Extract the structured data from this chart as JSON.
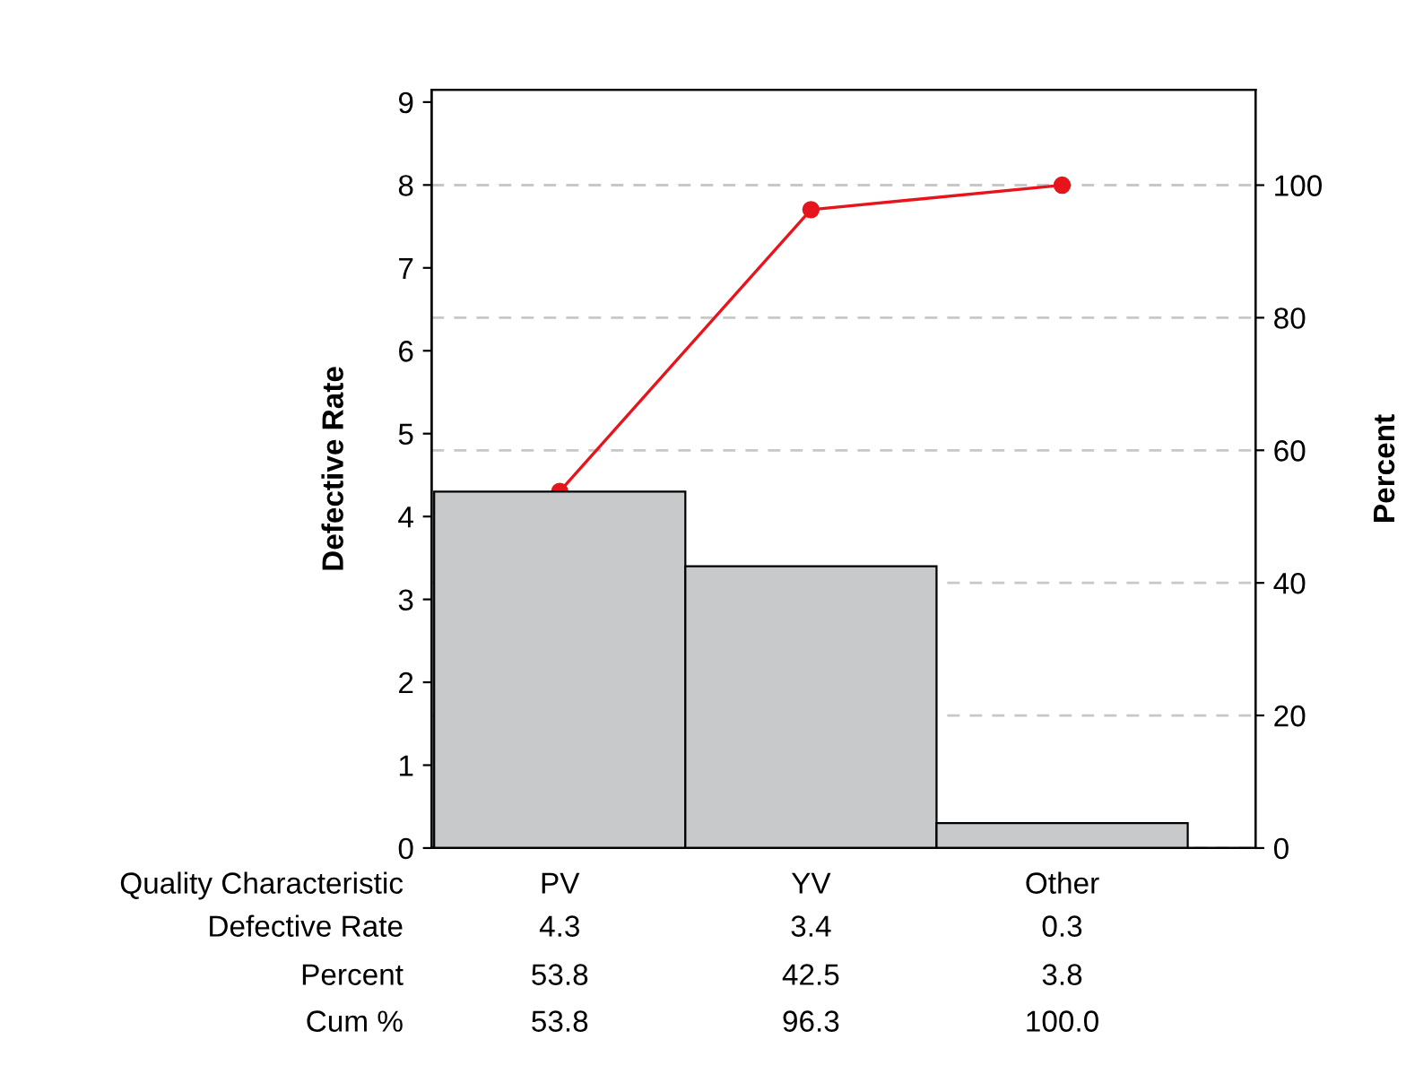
{
  "chart_data": {
    "type": "bar",
    "categories": [
      "PV",
      "YV",
      "Other"
    ],
    "xlabel": "Quality Characteristic",
    "ylabel": "Defective Rate",
    "y2label": "Percent",
    "series": [
      {
        "color": "#c8c9cb",
        "values": [
          4.3,
          3.4,
          0.3
        ],
        "value_labels": [
          "4.3",
          "3.4",
          "0.3"
        ]
      },
      {
        "type": "line",
        "axis": "y2",
        "color": "#e8141c",
        "marker": "circle",
        "values": [
          53.8,
          96.3,
          100.0
        ],
        "value_labels": [
          "53.8",
          "96.3",
          "100.0"
        ]
      }
    ],
    "annotations": [
      "Defective Rate",
      "Percent",
      "53.8",
      "42.5",
      "3.8",
      "Cum %"
    ],
    "ylim": [
      0,
      9.15
    ],
    "yticks": [
      0,
      1,
      2,
      3,
      4,
      5,
      6,
      7,
      8,
      9
    ],
    "y2lim": [
      0,
      114.4
    ],
    "y2ticks": [
      0,
      20,
      40,
      60,
      80,
      100
    ],
    "grid": "y",
    "legend": false
  }
}
